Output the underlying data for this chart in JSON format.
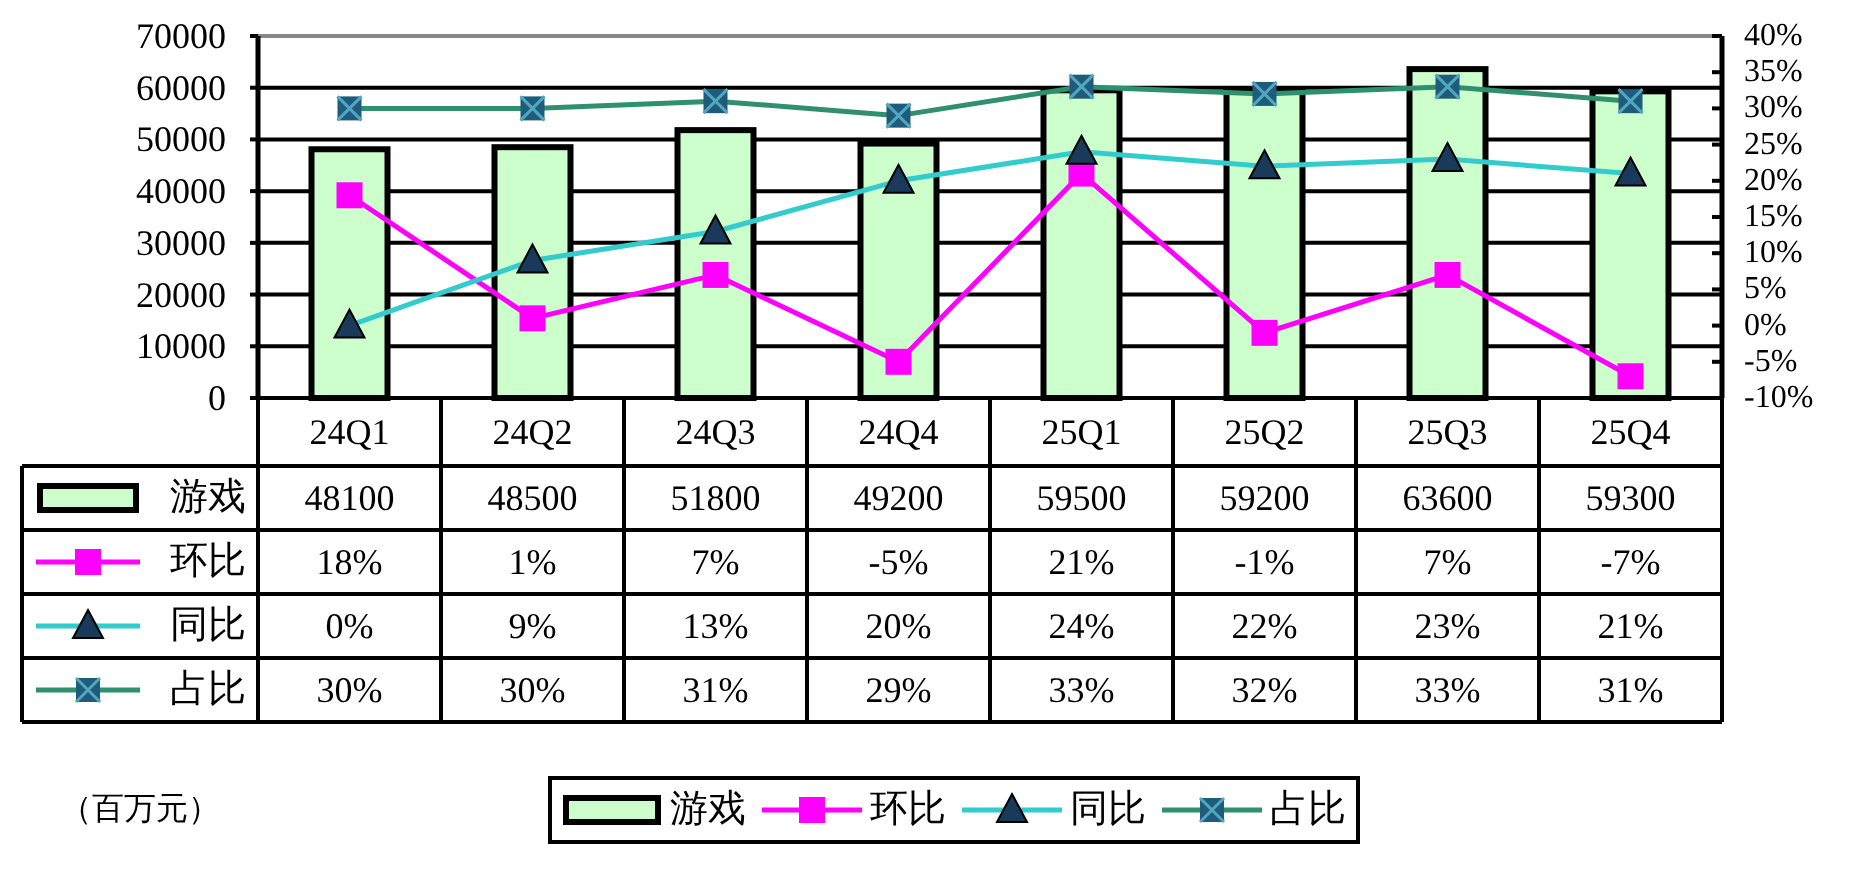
{
  "chart_data": {
    "type": "bar",
    "categories": [
      "24Q1",
      "24Q2",
      "24Q3",
      "24Q4",
      "25Q1",
      "25Q2",
      "25Q3",
      "25Q4"
    ],
    "series": [
      {
        "name": "游戏",
        "color": "#ccffcc",
        "values": [
          48100,
          48500,
          51800,
          49200,
          59500,
          59200,
          63600,
          59300
        ]
      },
      {
        "name": "环比",
        "type": "line",
        "axis": "y2",
        "color": "#ff00ff",
        "marker": "square",
        "values": [
          18,
          1,
          7,
          -5,
          21,
          -1,
          7,
          -7
        ],
        "value_labels": [
          "18%",
          "1%",
          "7%",
          "-5%",
          "21%",
          "-1%",
          "7%",
          "-7%"
        ]
      },
      {
        "name": "同比",
        "type": "line",
        "axis": "y2",
        "color": "#33cccc",
        "marker": "triangle",
        "values": [
          0,
          9,
          13,
          20,
          24,
          22,
          23,
          21
        ],
        "value_labels": [
          "0%",
          "9%",
          "13%",
          "20%",
          "24%",
          "22%",
          "23%",
          "21%"
        ]
      },
      {
        "name": "占比",
        "type": "line",
        "axis": "y2",
        "color": "#2f8f6f",
        "marker": "square",
        "values": [
          30,
          30,
          31,
          29,
          33,
          32,
          33,
          31
        ],
        "value_labels": [
          "30%",
          "30%",
          "31%",
          "29%",
          "33%",
          "32%",
          "33%",
          "31%"
        ]
      }
    ],
    "ylim": [
      0,
      70000
    ],
    "yticks": [
      0,
      10000,
      20000,
      30000,
      40000,
      50000,
      60000,
      70000
    ],
    "y2lim": [
      -10,
      40
    ],
    "y2ticks": [
      {
        "value": -10,
        "label": "-10%"
      },
      {
        "value": -5,
        "label": "-5%"
      },
      {
        "value": 0,
        "label": "0%"
      },
      {
        "value": 5,
        "label": "5%"
      },
      {
        "value": 10,
        "label": "10%"
      },
      {
        "value": 15,
        "label": "15%"
      },
      {
        "value": 20,
        "label": "20%"
      },
      {
        "value": 25,
        "label": "25%"
      },
      {
        "value": 30,
        "label": "30%"
      },
      {
        "value": 35,
        "label": "35%"
      },
      {
        "value": 40,
        "label": "40%"
      }
    ],
    "grid": "y",
    "legend": "bottom",
    "data_labels": true,
    "line_style": "solid",
    "annotations": [
      "（百万元）"
    ]
  }
}
